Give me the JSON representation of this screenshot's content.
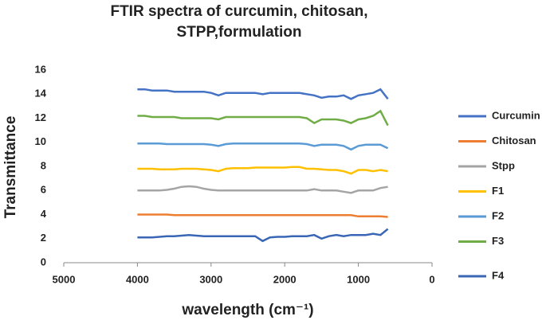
{
  "chart_data": {
    "type": "line",
    "title": "FTIR spectra of curcumin, chitosan, STPP,formulation",
    "xlabel": "wavelength (cm⁻¹)",
    "ylabel": "Transmittance",
    "xlim": [
      5000,
      0
    ],
    "xticks": [
      5000,
      4000,
      3000,
      2000,
      1000,
      0
    ],
    "ylim": [
      0,
      16
    ],
    "yticks": [
      0,
      2,
      4,
      6,
      8,
      10,
      12,
      14,
      16
    ],
    "legend": "right",
    "x": [
      4000,
      3900,
      3800,
      3700,
      3600,
      3500,
      3400,
      3300,
      3200,
      3100,
      3000,
      2900,
      2800,
      2700,
      2600,
      2500,
      2400,
      2300,
      2200,
      2100,
      2000,
      1900,
      1800,
      1700,
      1600,
      1500,
      1400,
      1300,
      1200,
      1100,
      1000,
      900,
      800,
      700,
      600
    ],
    "series": [
      {
        "name": "Curcumin",
        "color": "#4472c4",
        "values": [
          14.4,
          14.4,
          14.3,
          14.3,
          14.3,
          14.2,
          14.2,
          14.2,
          14.2,
          14.2,
          14.1,
          13.9,
          14.1,
          14.1,
          14.1,
          14.1,
          14.1,
          14.0,
          14.1,
          14.1,
          14.1,
          14.1,
          14.1,
          14.0,
          13.9,
          13.7,
          13.8,
          13.8,
          13.9,
          13.6,
          13.9,
          14.0,
          14.1,
          14.4,
          13.6
        ]
      },
      {
        "name": "Chitosan",
        "color": "#ed7d31",
        "values": [
          4.0,
          4.0,
          4.0,
          4.0,
          4.0,
          3.95,
          3.95,
          3.95,
          3.95,
          3.95,
          3.95,
          3.95,
          3.95,
          3.95,
          3.95,
          3.95,
          3.95,
          3.95,
          3.95,
          3.95,
          3.95,
          3.95,
          3.95,
          3.95,
          3.95,
          3.95,
          3.95,
          3.95,
          3.95,
          3.95,
          3.85,
          3.85,
          3.85,
          3.85,
          3.8
        ]
      },
      {
        "name": "Stpp",
        "color": "#a5a5a5",
        "values": [
          6.0,
          6.0,
          6.0,
          6.0,
          6.05,
          6.15,
          6.3,
          6.35,
          6.3,
          6.15,
          6.05,
          6.0,
          6.0,
          6.0,
          6.0,
          6.0,
          6.0,
          6.0,
          6.0,
          6.0,
          6.0,
          6.0,
          6.0,
          6.0,
          6.1,
          6.0,
          6.0,
          6.0,
          5.9,
          5.8,
          6.0,
          6.0,
          6.0,
          6.2,
          6.3
        ]
      },
      {
        "name": "F1",
        "color": "#ffc000",
        "values": [
          7.8,
          7.8,
          7.8,
          7.75,
          7.75,
          7.75,
          7.8,
          7.8,
          7.8,
          7.75,
          7.7,
          7.6,
          7.8,
          7.85,
          7.85,
          7.85,
          7.9,
          7.9,
          7.9,
          7.9,
          7.9,
          7.95,
          7.95,
          7.8,
          7.8,
          7.75,
          7.7,
          7.7,
          7.6,
          7.4,
          7.7,
          7.7,
          7.6,
          7.7,
          7.6
        ]
      },
      {
        "name": "F2",
        "color": "#5b9bd5",
        "values": [
          9.9,
          9.9,
          9.9,
          9.9,
          9.85,
          9.85,
          9.85,
          9.85,
          9.85,
          9.85,
          9.8,
          9.7,
          9.85,
          9.9,
          9.9,
          9.9,
          9.9,
          9.9,
          9.9,
          9.9,
          9.9,
          9.9,
          9.9,
          9.85,
          9.7,
          9.8,
          9.8,
          9.8,
          9.7,
          9.4,
          9.7,
          9.8,
          9.8,
          9.8,
          9.5
        ]
      },
      {
        "name": "F3",
        "color": "#70ad47",
        "values": [
          12.2,
          12.2,
          12.1,
          12.1,
          12.1,
          12.1,
          12.0,
          12.0,
          12.0,
          12.0,
          12.0,
          11.9,
          12.1,
          12.1,
          12.1,
          12.1,
          12.1,
          12.1,
          12.1,
          12.1,
          12.1,
          12.1,
          12.1,
          12.0,
          11.6,
          11.9,
          11.9,
          11.9,
          11.8,
          11.6,
          11.9,
          12.0,
          12.2,
          12.6,
          11.4
        ]
      },
      {
        "name": "F4",
        "color": "#3a66b6",
        "values": [
          2.1,
          2.1,
          2.1,
          2.15,
          2.2,
          2.2,
          2.25,
          2.3,
          2.25,
          2.2,
          2.2,
          2.2,
          2.2,
          2.2,
          2.2,
          2.2,
          2.2,
          1.8,
          2.1,
          2.15,
          2.15,
          2.2,
          2.2,
          2.2,
          2.3,
          2.0,
          2.2,
          2.3,
          2.2,
          2.3,
          2.3,
          2.3,
          2.4,
          2.3,
          2.8
        ]
      }
    ]
  }
}
